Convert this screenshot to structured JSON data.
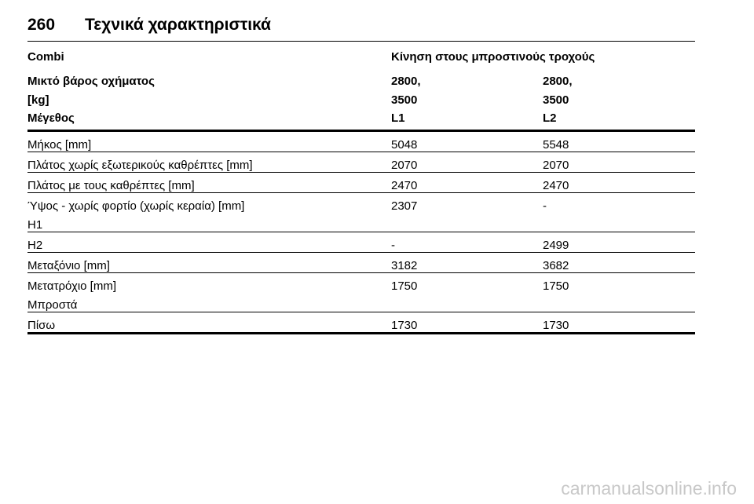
{
  "header": {
    "page_number": "260",
    "title": "Τεχνικά χαρακτηριστικά"
  },
  "table": {
    "header_rows": [
      {
        "col1": "Combi",
        "col2": "Κίνηση στους μπροστινούς τροχούς",
        "col3": ""
      },
      {
        "col1": "Μικτό βάρος οχήματος\n[kg]",
        "col2": "2800,\n3500",
        "col3": "2800,\n3500"
      },
      {
        "col1": "Μέγεθος",
        "col2": "L1",
        "col3": "L2"
      }
    ],
    "rows": [
      {
        "label": "Μήκος [mm]",
        "l1": "5048",
        "l2": "5548"
      },
      {
        "label": "Πλάτος χωρίς εξωτερικούς καθρέπτες [mm]",
        "l1": "2070",
        "l2": "2070"
      },
      {
        "label": "Πλάτος με τους καθρέπτες [mm]",
        "l1": "2470",
        "l2": "2470"
      },
      {
        "label": "Ύψος - χωρίς φορτίο (χωρίς κεραία) [mm]\nH1",
        "l1": "2307",
        "l2": "-"
      },
      {
        "label": "H2",
        "l1": "-",
        "l2": "2499"
      },
      {
        "label": "Μεταξόνιο [mm]",
        "l1": "3182",
        "l2": "3682"
      },
      {
        "label": "Μετατρόχιο [mm]\nΜπροστά",
        "l1": "1750",
        "l2": "1750"
      },
      {
        "label": "Πίσω",
        "l1": "1730",
        "l2": "1730"
      }
    ]
  },
  "watermark": "carmanualsonline.info"
}
